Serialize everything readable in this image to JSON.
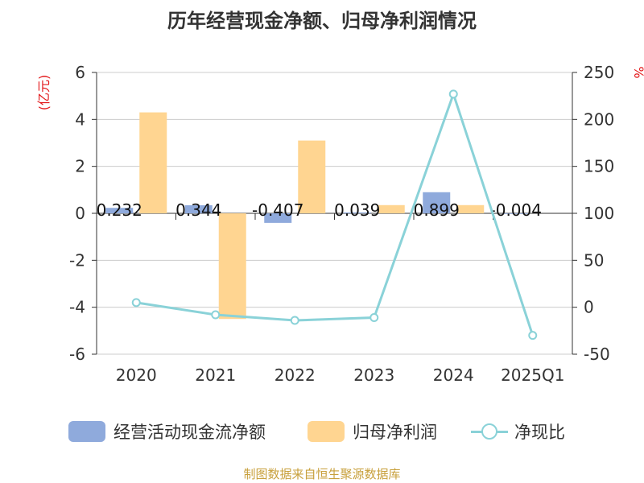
{
  "title": "历年经营现金净额、归母净利润情况",
  "source_note": "制图数据来自恒生聚源数据库",
  "colors": {
    "cash_flow": "#8faadc",
    "net_profit": "#ffd591",
    "ratio": "#8ad2d8",
    "axis_label": "#e31a1c",
    "text": "#333333",
    "source": "#c8a03c"
  },
  "chart_data": {
    "type": "bar",
    "categories": [
      "2020",
      "2021",
      "2022",
      "2023",
      "2024",
      "2025Q1"
    ],
    "y_left": {
      "label": "(亿元)",
      "ticks": [
        6,
        4,
        2,
        0,
        -2,
        -4,
        -6
      ],
      "range": [
        -6,
        6
      ]
    },
    "y_right": {
      "label": "%",
      "ticks": [
        250,
        200,
        150,
        100,
        50,
        0,
        -50
      ],
      "range": [
        -50,
        250
      ]
    },
    "grid": true,
    "legend_position": "bottom",
    "series": [
      {
        "name": "经营活动现金流净额",
        "type": "bar",
        "axis": "left",
        "values": [
          0.232,
          0.344,
          -0.407,
          0.039,
          0.899,
          -0.004
        ],
        "labels": [
          "0.232",
          "0.344",
          "-0.407",
          "0.039",
          "0.899",
          "-0.004"
        ]
      },
      {
        "name": "归母净利润",
        "type": "bar",
        "axis": "left",
        "values": [
          4.3,
          -4.5,
          3.1,
          0.35,
          0.35,
          null
        ]
      },
      {
        "name": "净现比",
        "type": "line",
        "axis": "right",
        "values": [
          5,
          -8,
          -14,
          -11,
          227,
          -30
        ]
      }
    ]
  }
}
